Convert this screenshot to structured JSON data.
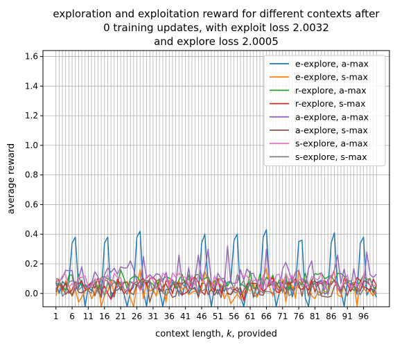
{
  "chart_data": {
    "type": "line",
    "title_lines": [
      "exploration and exploitation reward for different contexts after",
      "0 training updates, with exploit loss 2.0032",
      "and explore loss 2.0005"
    ],
    "xlabel": "context length, k, provided",
    "ylabel": "average reward",
    "xlim": [
      -3,
      104
    ],
    "ylim": [
      -0.09,
      1.64
    ],
    "xticks": [
      1,
      6,
      11,
      16,
      21,
      26,
      31,
      36,
      41,
      46,
      51,
      56,
      61,
      66,
      71,
      76,
      81,
      86,
      91,
      96
    ],
    "yticks": [
      0.0,
      0.2,
      0.4,
      0.6,
      0.8,
      1.0,
      1.2,
      1.4,
      1.6
    ],
    "ytick_labels": [
      "0.0",
      "0.2",
      "0.4",
      "0.6",
      "0.8",
      "1.0",
      "1.2",
      "1.4",
      "1.6"
    ],
    "grid": true,
    "vertical_grid_every": 1,
    "legend_position": "top-right",
    "x_start": 1,
    "x_end": 100,
    "series": [
      {
        "name": "e-explore, a-max",
        "color": "#1f77b4",
        "peaks": [
          {
            "x": 6,
            "y": 0.34
          },
          {
            "x": 7,
            "y": 0.38
          },
          {
            "x": 16,
            "y": 0.34
          },
          {
            "x": 17,
            "y": 0.38
          },
          {
            "x": 26,
            "y": 0.38
          },
          {
            "x": 27,
            "y": 0.42
          },
          {
            "x": 46,
            "y": 0.34
          },
          {
            "x": 47,
            "y": 0.4
          },
          {
            "x": 56,
            "y": 0.36
          },
          {
            "x": 57,
            "y": 0.4
          },
          {
            "x": 65,
            "y": 0.38
          },
          {
            "x": 66,
            "y": 0.43
          },
          {
            "x": 76,
            "y": 0.35
          },
          {
            "x": 77,
            "y": 0.36
          },
          {
            "x": 86,
            "y": 0.34
          },
          {
            "x": 87,
            "y": 0.41
          },
          {
            "x": 95,
            "y": 0.34
          },
          {
            "x": 96,
            "y": 0.38
          }
        ],
        "base": 0.03,
        "noise": 0.06,
        "dips": [
          {
            "x": 10,
            "y": -0.09
          },
          {
            "x": 23,
            "y": -0.09
          },
          {
            "x": 29,
            "y": -0.09
          },
          {
            "x": 34,
            "y": -0.09
          },
          {
            "x": 49,
            "y": -0.09
          },
          {
            "x": 59,
            "y": -0.09
          },
          {
            "x": 69,
            "y": -0.09
          },
          {
            "x": 79,
            "y": -0.09
          },
          {
            "x": 90,
            "y": -0.09
          }
        ]
      },
      {
        "name": "e-explore, s-max",
        "color": "#ff7f0e",
        "base": 0.03,
        "noise": 0.07,
        "peaks": [
          {
            "x": 27,
            "y": 0.16
          },
          {
            "x": 47,
            "y": 0.15
          },
          {
            "x": 66,
            "y": 0.17
          },
          {
            "x": 76,
            "y": 0.16
          },
          {
            "x": 87,
            "y": 0.15
          }
        ],
        "dips": [
          {
            "x": 8,
            "y": -0.06
          },
          {
            "x": 15,
            "y": -0.09
          },
          {
            "x": 25,
            "y": -0.09
          },
          {
            "x": 35,
            "y": -0.06
          },
          {
            "x": 55,
            "y": -0.07
          },
          {
            "x": 72,
            "y": -0.06
          },
          {
            "x": 94,
            "y": -0.09
          }
        ]
      },
      {
        "name": "r-explore, a-max",
        "color": "#2ca02c",
        "base": 0.08,
        "noise": 0.06,
        "peaks": [
          {
            "x": 21,
            "y": 0.16
          },
          {
            "x": 61,
            "y": 0.15
          },
          {
            "x": 83,
            "y": 0.14
          }
        ],
        "dips": []
      },
      {
        "name": "r-explore, s-max",
        "color": "#d62728",
        "base": 0.05,
        "noise": 0.06,
        "peaks": [],
        "dips": [
          {
            "x": 18,
            "y": -0.04
          },
          {
            "x": 59,
            "y": -0.05
          }
        ]
      },
      {
        "name": "a-explore, a-max",
        "color": "#9467bd",
        "base": 0.1,
        "noise": 0.08,
        "peaks": [
          {
            "x": 9,
            "y": 0.18
          },
          {
            "x": 24,
            "y": 0.22
          },
          {
            "x": 28,
            "y": 0.25
          },
          {
            "x": 39,
            "y": 0.26
          },
          {
            "x": 45,
            "y": 0.26
          },
          {
            "x": 48,
            "y": 0.3
          },
          {
            "x": 54,
            "y": 0.32
          },
          {
            "x": 66,
            "y": 0.3
          },
          {
            "x": 72,
            "y": 0.21
          },
          {
            "x": 80,
            "y": 0.22
          },
          {
            "x": 88,
            "y": 0.26
          },
          {
            "x": 97,
            "y": 0.28
          },
          {
            "x": 100,
            "y": 0.13
          }
        ],
        "dips": []
      },
      {
        "name": "a-explore, s-max",
        "color": "#8c564b",
        "base": 0.03,
        "noise": 0.06,
        "peaks": [],
        "dips": [
          {
            "x": 30,
            "y": -0.06
          }
        ]
      },
      {
        "name": "s-explore, a-max",
        "color": "#e377c2",
        "base": 0.08,
        "noise": 0.06,
        "peaks": [
          {
            "x": 3,
            "y": 0.12
          },
          {
            "x": 70,
            "y": 0.13
          }
        ],
        "dips": []
      },
      {
        "name": "s-explore, s-max",
        "color": "#7f7f7f",
        "base": 0.04,
        "noise": 0.06,
        "peaks": [
          {
            "x": 1,
            "y": 0.1
          }
        ],
        "dips": []
      }
    ]
  }
}
